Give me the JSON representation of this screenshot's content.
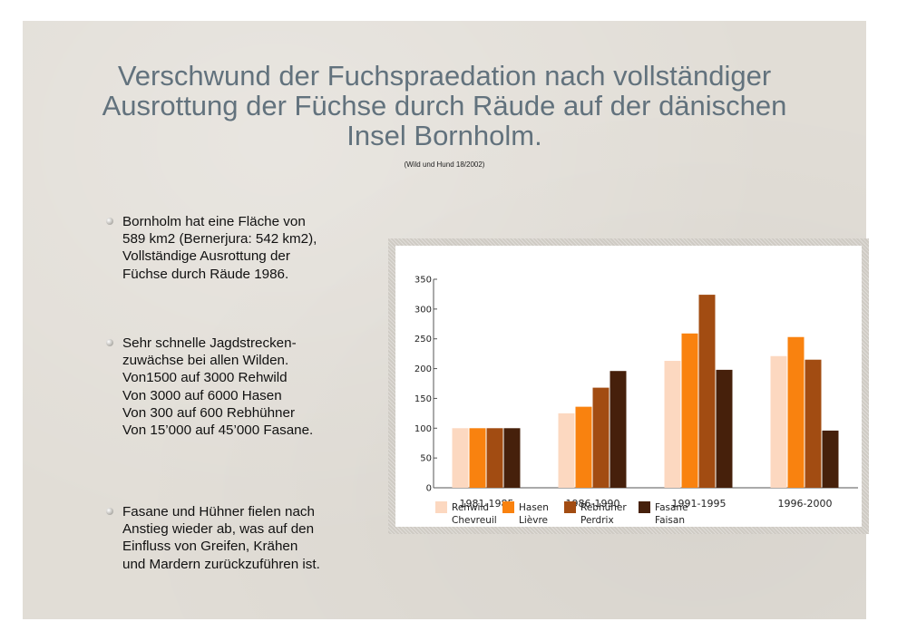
{
  "slide": {
    "title_lines": [
      "Verschwund der Fuchspraedation nach vollständiger",
      "Ausrottung der Füchse durch Räude auf der dänischen",
      "Insel Bornholm."
    ],
    "source": "(Wild und Hund 18/2002)",
    "bullets": [
      {
        "lines": [
          "Bornholm hat eine Fläche von",
          "589 km2 (Bernerjura: 542 km2),",
          "Vollständige Ausrottung der",
          "Füchse durch Räude 1986."
        ]
      },
      {
        "lines": [
          "Sehr schnelle Jagdstrecken-",
          "zuwächse bei allen Wilden.",
          "Von1500 auf 3000 Rehwild",
          "Von 3000 auf 6000 Hasen",
          "Von 300 auf 600 Rebhühner",
          "Von 15’000 auf 45’000 Fasane."
        ]
      },
      {
        "lines": [
          "Fasane und Hühner fielen nach",
          "Anstieg wieder ab, was auf den",
          "Einfluss von Greifen, Krähen",
          "und Mardern zurückzuführen ist."
        ]
      }
    ]
  },
  "chart_data": {
    "type": "bar",
    "title": "",
    "xlabel": "",
    "ylabel": "",
    "ylim": [
      0,
      350
    ],
    "yticks": [
      "0",
      "50",
      "100",
      "150",
      "200",
      "250",
      "300",
      "350"
    ],
    "categories": [
      "1981-1985",
      "1986-1990",
      "1991-1995",
      "1996-2000"
    ],
    "series": [
      {
        "name": "Rehwild",
        "name2": "Chevreuil",
        "color": "#fcd8c0",
        "values": [
          100,
          125,
          213,
          221
        ]
      },
      {
        "name": "Hasen",
        "name2": "Lièvre",
        "color": "#f9820f",
        "values": [
          100,
          136,
          259,
          253
        ]
      },
      {
        "name": "Rebhüner",
        "name2": "Perdrix",
        "color": "#a24c12",
        "values": [
          100,
          168,
          324,
          215
        ]
      },
      {
        "name": "Fasane",
        "name2": "Faisan",
        "color": "#46200b",
        "values": [
          100,
          196,
          198,
          96
        ]
      }
    ],
    "grid": false,
    "legend": "bottom"
  }
}
